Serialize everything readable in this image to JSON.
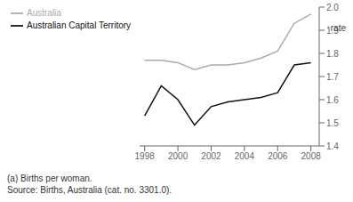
{
  "chart_data": {
    "type": "line",
    "ylabel": "rate",
    "x": [
      1998,
      1999,
      2000,
      2001,
      2002,
      2003,
      2004,
      2005,
      2006,
      2007,
      2008
    ],
    "series": [
      {
        "name": "Australian Capital Territory",
        "color": "#111111",
        "values": [
          1.53,
          1.66,
          1.6,
          1.49,
          1.57,
          1.59,
          1.6,
          1.61,
          1.63,
          1.75,
          1.76
        ]
      },
      {
        "name": "Australia",
        "color": "#aaaaaa",
        "values": [
          1.77,
          1.77,
          1.76,
          1.73,
          1.75,
          1.75,
          1.76,
          1.78,
          1.81,
          1.93,
          1.97
        ]
      }
    ],
    "xlim": [
      1997.7,
      2008.5
    ],
    "ylim": [
      1.4,
      2.0
    ],
    "xticks": [
      1998,
      2000,
      2002,
      2004,
      2006,
      2008
    ],
    "yticks": [
      1.4,
      1.5,
      1.6,
      1.7,
      1.8,
      1.9,
      {
        "value": 2.0,
        "label": "2.0"
      }
    ],
    "legend": "upper left",
    "grid": false,
    "annotations": [
      "(a) Births per woman.",
      "Source:  Births, Australia (cat. no. 3301.0)."
    ]
  }
}
